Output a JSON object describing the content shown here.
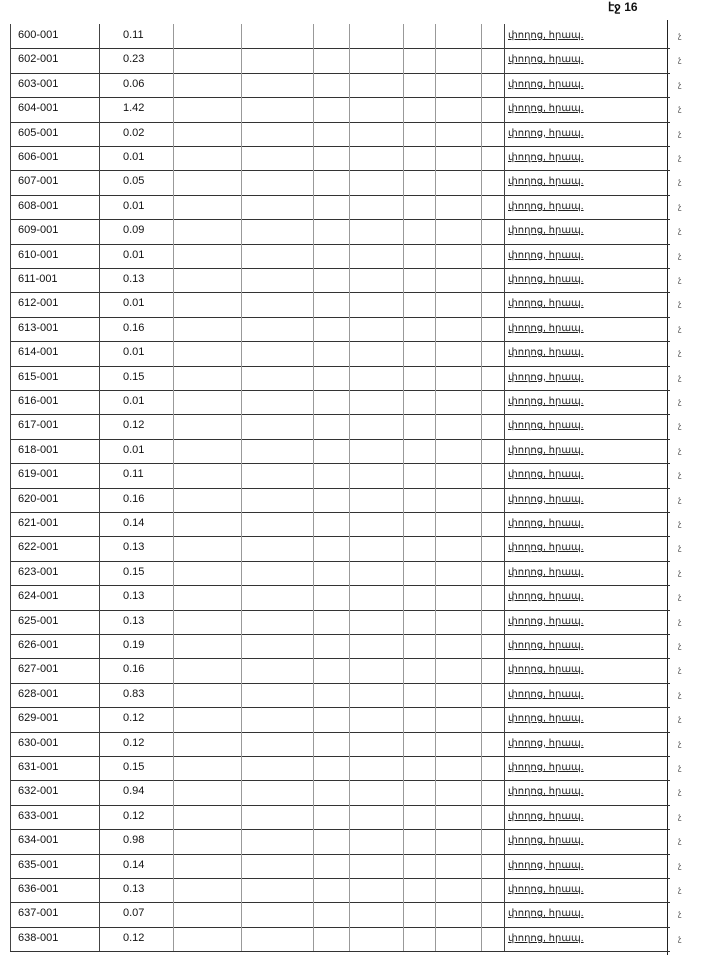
{
  "page_label": "էջ 16",
  "rows": [
    {
      "code": "600-001",
      "value": "0.11",
      "desc": "փողոց, հրապ.",
      "edge": "չ"
    },
    {
      "code": "602-001",
      "value": "0.23",
      "desc": "փողոց, հրապ.",
      "edge": "չ"
    },
    {
      "code": "603-001",
      "value": "0.06",
      "desc": "փողոց, հրապ.",
      "edge": "չ"
    },
    {
      "code": "604-001",
      "value": "1.42",
      "desc": "փողոց, հրապ.",
      "edge": "չ"
    },
    {
      "code": "605-001",
      "value": "0.02",
      "desc": "փողոց, հրապ.",
      "edge": "չ"
    },
    {
      "code": "606-001",
      "value": "0.01",
      "desc": "փողոց, հրապ.",
      "edge": "չ"
    },
    {
      "code": "607-001",
      "value": "0.05",
      "desc": "փողոց, հրապ.",
      "edge": "չ"
    },
    {
      "code": "608-001",
      "value": "0.01",
      "desc": "փողոց, հրապ.",
      "edge": "չ"
    },
    {
      "code": "609-001",
      "value": "0.09",
      "desc": "փողոց, հրապ.",
      "edge": "չ"
    },
    {
      "code": "610-001",
      "value": "0.01",
      "desc": "փողոց, հրապ.",
      "edge": "չ"
    },
    {
      "code": "611-001",
      "value": "0.13",
      "desc": "փողոց, հրապ.",
      "edge": "չ"
    },
    {
      "code": "612-001",
      "value": "0.01",
      "desc": "փողոց, հրապ.",
      "edge": "չ"
    },
    {
      "code": "613-001",
      "value": "0.16",
      "desc": "փողոց, հրապ.",
      "edge": "չ"
    },
    {
      "code": "614-001",
      "value": "0.01",
      "desc": "փողոց, հրապ.",
      "edge": "չ"
    },
    {
      "code": "615-001",
      "value": "0.15",
      "desc": "փողոց, հրապ.",
      "edge": "չ"
    },
    {
      "code": "616-001",
      "value": "0.01",
      "desc": "փողոց, հրապ.",
      "edge": "չ"
    },
    {
      "code": "617-001",
      "value": "0.12",
      "desc": "փողոց, հրապ.",
      "edge": "չ"
    },
    {
      "code": "618-001",
      "value": "0.01",
      "desc": "փողոց, հրապ.",
      "edge": "չ"
    },
    {
      "code": "619-001",
      "value": "0.11",
      "desc": "փողոց, հրապ.",
      "edge": "չ"
    },
    {
      "code": "620-001",
      "value": "0.16",
      "desc": "փողոց, հրապ.",
      "edge": "չ"
    },
    {
      "code": "621-001",
      "value": "0.14",
      "desc": "փողոց, հրապ.",
      "edge": "չ"
    },
    {
      "code": "622-001",
      "value": "0.13",
      "desc": "փողոց, հրապ.",
      "edge": "չ"
    },
    {
      "code": "623-001",
      "value": "0.15",
      "desc": "փողոց, հրապ.",
      "edge": "չ"
    },
    {
      "code": "624-001",
      "value": "0.13",
      "desc": "փողոց, հրապ.",
      "edge": "չ"
    },
    {
      "code": "625-001",
      "value": "0.13",
      "desc": "փողոց, հրապ.",
      "edge": "չ"
    },
    {
      "code": "626-001",
      "value": "0.19",
      "desc": "փողոց, հրապ.",
      "edge": "չ"
    },
    {
      "code": "627-001",
      "value": "0.16",
      "desc": "փողոց, հրապ.",
      "edge": "չ"
    },
    {
      "code": "628-001",
      "value": "0.83",
      "desc": "փողոց, հրապ.",
      "edge": "չ"
    },
    {
      "code": "629-001",
      "value": "0.12",
      "desc": "փողոց, հրապ.",
      "edge": "չ"
    },
    {
      "code": "630-001",
      "value": "0.12",
      "desc": "փողոց, հրապ.",
      "edge": "չ"
    },
    {
      "code": "631-001",
      "value": "0.15",
      "desc": "փողոց, հրապ.",
      "edge": "չ"
    },
    {
      "code": "632-001",
      "value": "0.94",
      "desc": "փողոց, հրապ.",
      "edge": "չ"
    },
    {
      "code": "633-001",
      "value": "0.12",
      "desc": "փողոց, հրապ.",
      "edge": "չ"
    },
    {
      "code": "634-001",
      "value": "0.98",
      "desc": "փողոց, հրապ.",
      "edge": "չ"
    },
    {
      "code": "635-001",
      "value": "0.14",
      "desc": "փողոց, հրապ.",
      "edge": "չ"
    },
    {
      "code": "636-001",
      "value": "0.13",
      "desc": "փողոց, հրապ.",
      "edge": "չ"
    },
    {
      "code": "637-001",
      "value": "0.07",
      "desc": "փողոց, հրապ.",
      "edge": "չ"
    },
    {
      "code": "638-001",
      "value": "0.12",
      "desc": "փողոց, հրապ.",
      "edge": "չ"
    }
  ]
}
